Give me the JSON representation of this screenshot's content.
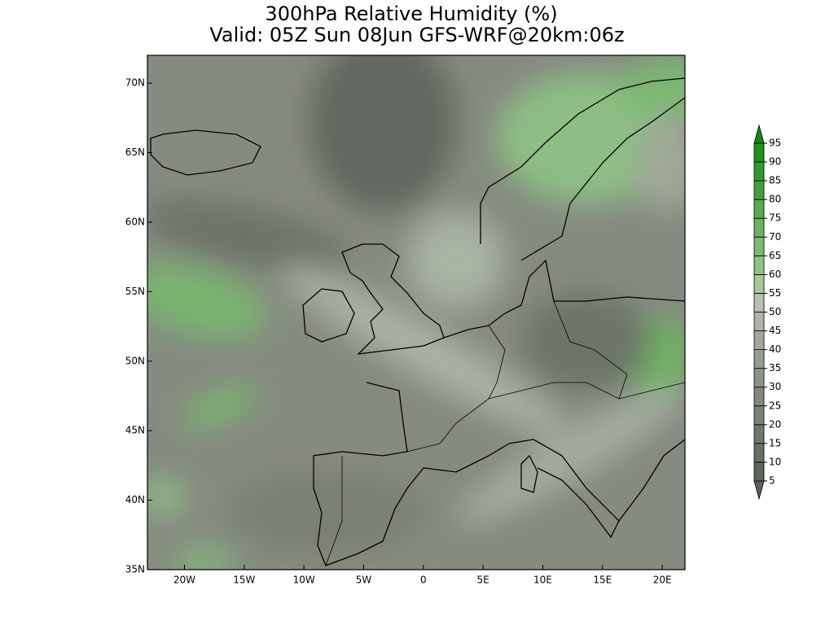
{
  "title": "300hPa Relative Humidity (%)",
  "subtitle": "Valid: 05Z Sun 08Jun GFS-WRF@20km:06z",
  "map": {
    "lonlim": [
      -23.1,
      21.9
    ],
    "latlim": [
      35,
      72
    ],
    "lon_ticks": [
      {
        "value": -20,
        "label": "20W"
      },
      {
        "value": -15,
        "label": "15W"
      },
      {
        "value": -10,
        "label": "10W"
      },
      {
        "value": -5,
        "label": "5W"
      },
      0,
      {
        "value": 5,
        "label": "5E"
      },
      {
        "value": 10,
        "label": "10E"
      },
      {
        "value": 15,
        "label": "15E"
      },
      {
        "value": 20,
        "label": "20E"
      }
    ],
    "lat_ticks": [
      {
        "value": 35,
        "label": "35N"
      },
      {
        "value": 40,
        "label": "40N"
      },
      {
        "value": 45,
        "label": "45N"
      },
      {
        "value": 50,
        "label": "50N"
      },
      {
        "value": 55,
        "label": "55N"
      },
      {
        "value": 60,
        "label": "60N"
      },
      {
        "value": 65,
        "label": "65N"
      },
      {
        "value": 70,
        "label": "70N"
      }
    ]
  },
  "colorbar": {
    "levels": [
      5,
      10,
      15,
      20,
      25,
      30,
      35,
      40,
      45,
      50,
      55,
      60,
      65,
      70,
      75,
      80,
      85,
      90,
      95
    ],
    "colors": [
      "#596055",
      "#5f665c",
      "#687063",
      "#70786b",
      "#7a8274",
      "#838a7d",
      "#8d9487",
      "#979e91",
      "#a2a89c",
      "#adb3a8",
      "#b8bfb3",
      "#a3c99b",
      "#8ec385",
      "#7cbb72",
      "#6ab460",
      "#56ab4c",
      "#43a23a",
      "#319a2a",
      "#1f911c",
      "#108a10"
    ]
  }
}
